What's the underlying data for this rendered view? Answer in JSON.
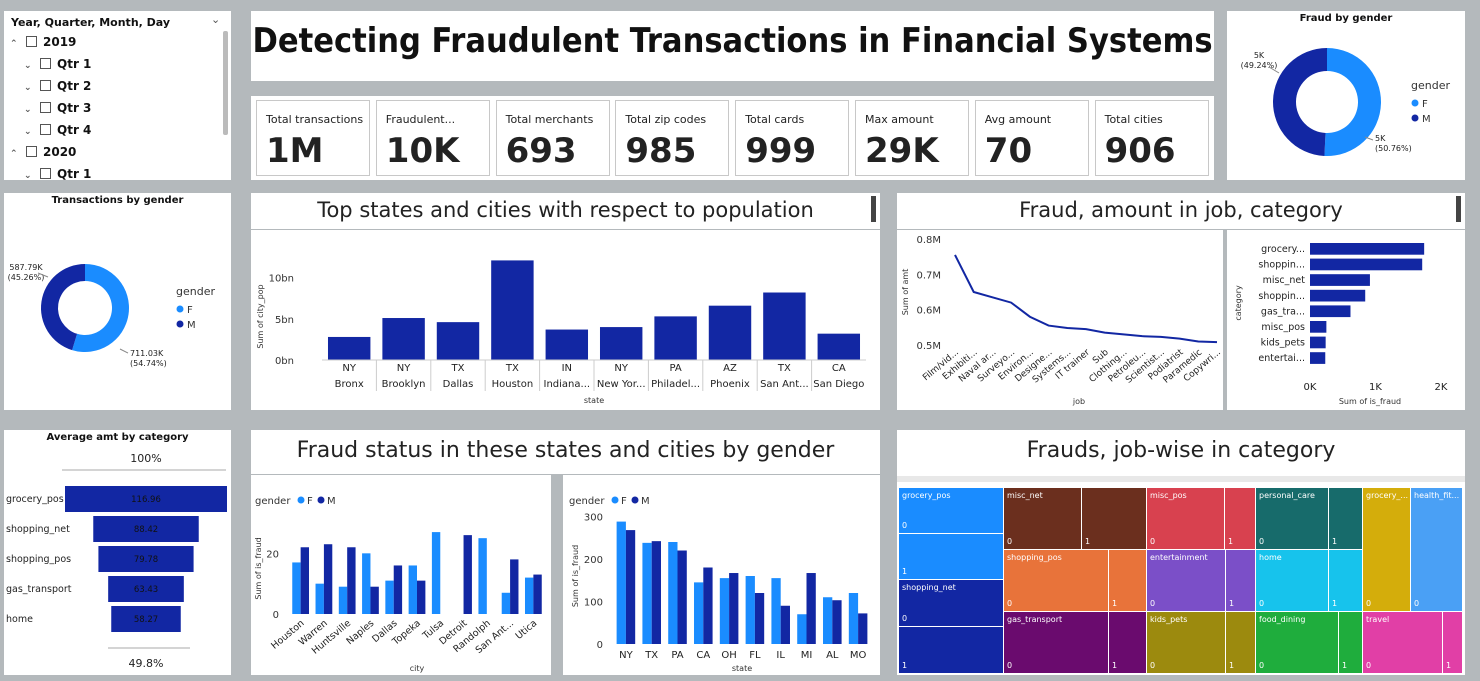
{
  "title": "Detecting Fraudulent Transactions in Financial Systems",
  "slicer": {
    "header": "Year, Quarter, Month, Day",
    "items": [
      {
        "label": "2019",
        "level": 0,
        "chev": "^"
      },
      {
        "label": "Qtr 1",
        "level": 1,
        "chev": "v"
      },
      {
        "label": "Qtr 2",
        "level": 1,
        "chev": "v"
      },
      {
        "label": "Qtr 3",
        "level": 1,
        "chev": "v"
      },
      {
        "label": "Qtr 4",
        "level": 1,
        "chev": "v"
      },
      {
        "label": "2020",
        "level": 0,
        "chev": "^"
      },
      {
        "label": "Qtr 1",
        "level": 1,
        "chev": "v"
      }
    ]
  },
  "kpis": [
    {
      "label": "Total transactions",
      "value": "1M"
    },
    {
      "label": "Fraudulent...",
      "value": "10K"
    },
    {
      "label": "Total merchants",
      "value": "693"
    },
    {
      "label": "Total zip codes",
      "value": "985"
    },
    {
      "label": "Total cards",
      "value": "999"
    },
    {
      "label": "Max amount",
      "value": "29K"
    },
    {
      "label": "Avg amount",
      "value": "70"
    },
    {
      "label": "Total cities",
      "value": "906"
    }
  ],
  "colors": {
    "F": "#1a8cff",
    "M": "#1227a3",
    "bar": "#1227a3"
  },
  "chart_data": [
    {
      "id": "fraud_by_gender",
      "type": "pie",
      "title": "Fraud by gender",
      "legend_title": "gender",
      "slices": [
        {
          "name": "F",
          "value": 50.76,
          "label": "5K",
          "sublabel": "(50.76%)"
        },
        {
          "name": "M",
          "value": 49.24,
          "label": "5K",
          "sublabel": "(49.24%)"
        }
      ]
    },
    {
      "id": "transactions_by_gender",
      "type": "pie",
      "title": "Transactions by gender",
      "legend_title": "gender",
      "slices": [
        {
          "name": "F",
          "value": 54.74,
          "label": "711.03K",
          "sublabel": "(54.74%)"
        },
        {
          "name": "M",
          "value": 45.26,
          "label": "587.79K",
          "sublabel": "(45.26%)"
        }
      ]
    },
    {
      "id": "top_states_cities",
      "type": "bar",
      "title": "Top states and cities with respect to population",
      "xlabel": "state",
      "ylabel": "Sum of city_pop",
      "yticks": [
        "0bn",
        "5bn",
        "10bn"
      ],
      "ylim": [
        0,
        13
      ],
      "categories": [
        {
          "state": "NY",
          "city": "Bronx"
        },
        {
          "state": "NY",
          "city": "Brooklyn"
        },
        {
          "state": "TX",
          "city": "Dallas"
        },
        {
          "state": "TX",
          "city": "Houston"
        },
        {
          "state": "IN",
          "city": "Indiana..."
        },
        {
          "state": "NY",
          "city": "New Yor..."
        },
        {
          "state": "PA",
          "city": "Philadel..."
        },
        {
          "state": "AZ",
          "city": "Phoenix"
        },
        {
          "state": "TX",
          "city": "San Ant..."
        },
        {
          "state": "CA",
          "city": "San Diego"
        }
      ],
      "values": [
        2.8,
        5.1,
        4.6,
        12.1,
        3.7,
        4.0,
        5.3,
        6.6,
        8.2,
        3.2
      ]
    },
    {
      "id": "amt_by_job",
      "type": "line",
      "title": "Fraud, amount in job, category",
      "xlabel": "job",
      "ylabel": "Sum of amt",
      "yticks": [
        "0.5M",
        "0.6M",
        "0.7M",
        "0.8M"
      ],
      "ylim": [
        0.48,
        0.8
      ],
      "categories": [
        "Film/vid...",
        "Exhibiti...",
        "Naval ar...",
        "Surveyo...",
        "Environ...",
        "Designe...",
        "Systems...",
        "IT trainer",
        "Sub",
        "Clothing...",
        "Petroleu...",
        "Scientist...",
        "Podiatrist",
        "Paramedic",
        "Copywri..."
      ],
      "values": [
        0.755,
        0.65,
        0.635,
        0.62,
        0.58,
        0.555,
        0.548,
        0.545,
        0.535,
        0.53,
        0.525,
        0.523,
        0.518,
        0.51,
        0.508
      ]
    },
    {
      "id": "fraud_by_category",
      "type": "bar",
      "orientation": "horizontal",
      "xlabel": "Sum of is_fraud",
      "ylabel": "category",
      "xticks": [
        "0K",
        "1K",
        "2K"
      ],
      "xlim": [
        0,
        2000
      ],
      "categories": [
        "grocery...",
        "shoppin...",
        "misc_net",
        "shoppin...",
        "gas_tra...",
        "misc_pos",
        "kids_pets",
        "entertai..."
      ],
      "values": [
        1743,
        1713,
        915,
        843,
        618,
        250,
        239,
        233
      ]
    },
    {
      "id": "avg_amt_by_category",
      "type": "bar",
      "subtype": "funnel",
      "title": "Average amt by category",
      "top_label": "100%",
      "bottom_label": "49.8%",
      "categories": [
        "grocery_pos",
        "shopping_net",
        "shopping_pos",
        "gas_transport",
        "home"
      ],
      "values": [
        116.96,
        88.42,
        79.78,
        63.43,
        58.27
      ],
      "value_labels": [
        "116.96",
        "88.42",
        "79.78",
        "63.43",
        "58.27"
      ]
    },
    {
      "id": "fraud_by_city_gender",
      "type": "bar",
      "title": "Fraud status in these states and cities by gender",
      "legend_title": "gender",
      "xlabel": "city",
      "ylabel": "Sum of is_fraud",
      "yticks": [
        "0",
        "20"
      ],
      "ylim": [
        0,
        30
      ],
      "categories": [
        "Houston",
        "Warren",
        "Huntsville",
        "Naples",
        "Dallas",
        "Topeka",
        "Tulsa",
        "Detroit",
        "Randolph",
        "San Ant...",
        "Utica"
      ],
      "series": [
        {
          "name": "F",
          "values": [
            17,
            10,
            9,
            20,
            11,
            16,
            27,
            0,
            25,
            7,
            12
          ]
        },
        {
          "name": "M",
          "values": [
            22,
            23,
            22,
            9,
            16,
            11,
            0,
            26,
            0,
            18,
            13
          ]
        }
      ]
    },
    {
      "id": "fraud_by_state_gender",
      "type": "bar",
      "legend_title": "gender",
      "xlabel": "state",
      "ylabel": "Sum of is_fraud",
      "yticks": [
        "0",
        "100",
        "200",
        "300"
      ],
      "ylim": [
        0,
        320
      ],
      "categories": [
        "NY",
        "TX",
        "PA",
        "CA",
        "OH",
        "FL",
        "IL",
        "MI",
        "AL",
        "MO"
      ],
      "series": [
        {
          "name": "F",
          "values": [
            288,
            238,
            240,
            145,
            155,
            160,
            155,
            70,
            110,
            120
          ]
        },
        {
          "name": "M",
          "values": [
            268,
            242,
            220,
            180,
            167,
            120,
            90,
            167,
            103,
            72
          ]
        }
      ]
    },
    {
      "id": "frauds_job_category",
      "type": "treemap",
      "title": "Frauds, job-wise in category",
      "cells": [
        {
          "label": "grocery_pos",
          "value": "0",
          "color": "#1a8cff"
        },
        {
          "label": "",
          "value": "1",
          "color": "#1a8cff"
        },
        {
          "label": "shopping_net",
          "value": "0",
          "color": "#1227a3"
        },
        {
          "label": "",
          "value": "1",
          "color": "#1227a3"
        },
        {
          "label": "misc_net",
          "value": "0",
          "color": "#6b2f1e"
        },
        {
          "label": "",
          "value": "1",
          "color": "#6b2f1e"
        },
        {
          "label": "shopping_pos",
          "value": "0",
          "color": "#e8733a"
        },
        {
          "label": "",
          "value": "1",
          "color": "#e8733a"
        },
        {
          "label": "gas_transport",
          "value": "0",
          "color": "#6a0b6e"
        },
        {
          "label": "",
          "value": "1",
          "color": "#6a0b6e"
        },
        {
          "label": "misc_pos",
          "value": "0",
          "color": "#d8414f"
        },
        {
          "label": "",
          "value": "1",
          "color": "#d8414f"
        },
        {
          "label": "entertainment",
          "value": "0",
          "color": "#7b4fc8"
        },
        {
          "label": "",
          "value": "1",
          "color": "#7b4fc8"
        },
        {
          "label": "kids_pets",
          "value": "0",
          "color": "#9c8a0e"
        },
        {
          "label": "",
          "value": "1",
          "color": "#9c8a0e"
        },
        {
          "label": "personal_care",
          "value": "0",
          "color": "#176b6b"
        },
        {
          "label": "",
          "value": "1",
          "color": "#176b6b"
        },
        {
          "label": "home",
          "value": "0",
          "color": "#17c3ec"
        },
        {
          "label": "",
          "value": "1",
          "color": "#17c3ec"
        },
        {
          "label": "food_dining",
          "value": "0",
          "color": "#1fad3d"
        },
        {
          "label": "",
          "value": "1",
          "color": "#1fad3d"
        },
        {
          "label": "grocery_...",
          "value": "0",
          "color": "#d4ad0b"
        },
        {
          "label": "",
          "value": "1",
          "color": "#d4ad0b"
        },
        {
          "label": "health_fit...",
          "value": "0",
          "color": "#4aa0f5"
        },
        {
          "label": "",
          "value": "1",
          "color": "#4aa0f5"
        },
        {
          "label": "travel",
          "value": "0",
          "color": "#e13fa6"
        },
        {
          "label": "",
          "value": "1",
          "color": "#e13fa6"
        }
      ]
    }
  ]
}
